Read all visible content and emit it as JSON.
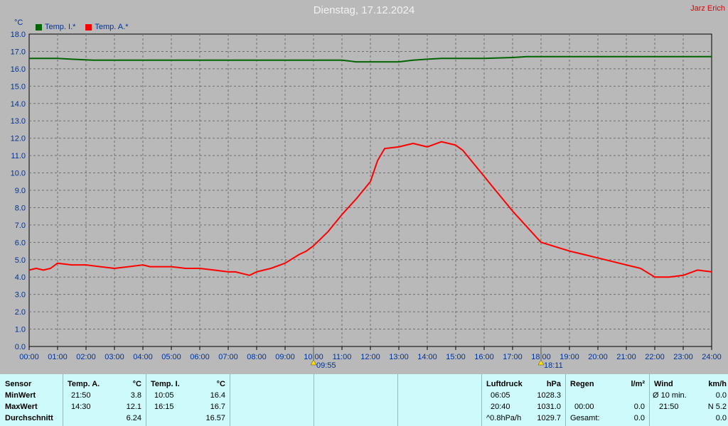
{
  "header": {
    "title": "Dienstag, 17.12.2024",
    "author": "Jarz Erich",
    "unit": "°C"
  },
  "legend": [
    {
      "label": "Temp. I.*",
      "color": "#006400"
    },
    {
      "label": "Temp. A.*",
      "color": "#ff0000"
    }
  ],
  "chart_data": {
    "type": "line",
    "ylim": [
      0,
      18
    ],
    "yticks": [
      "0.0",
      "1.0",
      "2.0",
      "3.0",
      "4.0",
      "5.0",
      "6.0",
      "7.0",
      "8.0",
      "9.0",
      "10.0",
      "11.0",
      "12.0",
      "13.0",
      "14.0",
      "15.0",
      "16.0",
      "17.0",
      "18.0"
    ],
    "xticks": [
      "00:00",
      "01:00",
      "02:00",
      "03:00",
      "04:00",
      "05:00",
      "06:00",
      "07:00",
      "08:00",
      "09:00",
      "10:00",
      "11:00",
      "12:00",
      "13:00",
      "14:00",
      "15:00",
      "16:00",
      "17:00",
      "18:00",
      "19:00",
      "20:00",
      "21:00",
      "22:00",
      "23:00",
      "24:00"
    ],
    "grid": true,
    "series": [
      {
        "name": "Temp. I.*",
        "color": "#006400",
        "x": [
          0,
          1,
          1.5,
          2.25,
          3,
          5,
          5.5,
          10,
          11,
          11.25,
          11.5,
          12.5,
          13,
          13.5,
          14,
          14.5,
          16,
          17,
          17.5,
          18,
          19,
          24
        ],
        "values": [
          16.6,
          16.6,
          16.55,
          16.5,
          16.5,
          16.5,
          16.5,
          16.5,
          16.5,
          16.45,
          16.4,
          16.4,
          16.4,
          16.5,
          16.55,
          16.6,
          16.6,
          16.65,
          16.7,
          16.7,
          16.7,
          16.7
        ]
      },
      {
        "name": "Temp. A.*",
        "color": "#ff0000",
        "x": [
          0,
          0.25,
          0.5,
          0.75,
          1,
          1.5,
          2,
          2.5,
          3,
          3.5,
          4,
          4.25,
          4.5,
          5,
          5.5,
          6,
          6.5,
          7,
          7.25,
          7.5,
          7.75,
          8,
          8.5,
          9,
          9.5,
          9.75,
          10,
          10.5,
          11,
          11.5,
          12,
          12.25,
          12.5,
          13,
          13.5,
          14,
          14.5,
          15,
          15.25,
          15.5,
          16,
          16.25,
          16.5,
          17,
          17.5,
          18,
          19,
          19.5,
          20,
          20.5,
          21,
          21.5,
          22,
          22.5,
          23,
          23.5,
          24
        ],
        "values": [
          4.4,
          4.5,
          4.4,
          4.5,
          4.8,
          4.7,
          4.7,
          4.6,
          4.5,
          4.6,
          4.7,
          4.6,
          4.6,
          4.6,
          4.5,
          4.5,
          4.4,
          4.3,
          4.3,
          4.2,
          4.1,
          4.3,
          4.5,
          4.8,
          5.3,
          5.5,
          5.8,
          6.6,
          7.6,
          8.5,
          9.5,
          10.7,
          11.4,
          11.5,
          11.7,
          11.5,
          11.8,
          11.6,
          11.3,
          10.8,
          9.8,
          9.3,
          8.8,
          7.8,
          6.9,
          6.0,
          5.5,
          5.3,
          5.1,
          4.9,
          4.7,
          4.5,
          4.0,
          4.0,
          4.1,
          4.4,
          4.3
        ]
      }
    ],
    "markers": [
      {
        "x": 10,
        "label": "09:55",
        "icon": "sunrise-icon"
      },
      {
        "x": 18,
        "label": "18:11",
        "icon": "sunset-icon"
      }
    ]
  },
  "table": {
    "sensor": {
      "h": "Sensor",
      "r1": "MinWert",
      "r2": "MaxWert",
      "r3": "Durchschnitt"
    },
    "temp_a": {
      "h": "Temp. A.",
      "u": "°C",
      "r1t": "21:50",
      "r1v": "3.8",
      "r2t": "14:30",
      "r2v": "12.1",
      "r3v": "6.24"
    },
    "temp_i": {
      "h": "Temp. I.",
      "u": "°C",
      "r1t": "10:05",
      "r1v": "16.4",
      "r2t": "16:15",
      "r2v": "16.7",
      "r3v": "16.57"
    },
    "pressure": {
      "h": "Luftdruck",
      "u": "hPa",
      "r1t": "06:05",
      "r1v": "1028.3",
      "r2t": "20:40",
      "r2v": "1031.0",
      "r3t": "^0.8hPa/h",
      "r3v": "1029.7"
    },
    "rain": {
      "h": "Regen",
      "u": "l/m²",
      "r2t": "00:00",
      "r2v": "0.0",
      "r3t": "Gesamt:",
      "r3v": "0.0"
    },
    "wind": {
      "h": "Wind",
      "u": "km/h",
      "r1t": "Ø 10 min.",
      "r1v": "0.0",
      "r2t": "21:50",
      "r2v": "N 5.2",
      "r3v": "0.0"
    }
  }
}
